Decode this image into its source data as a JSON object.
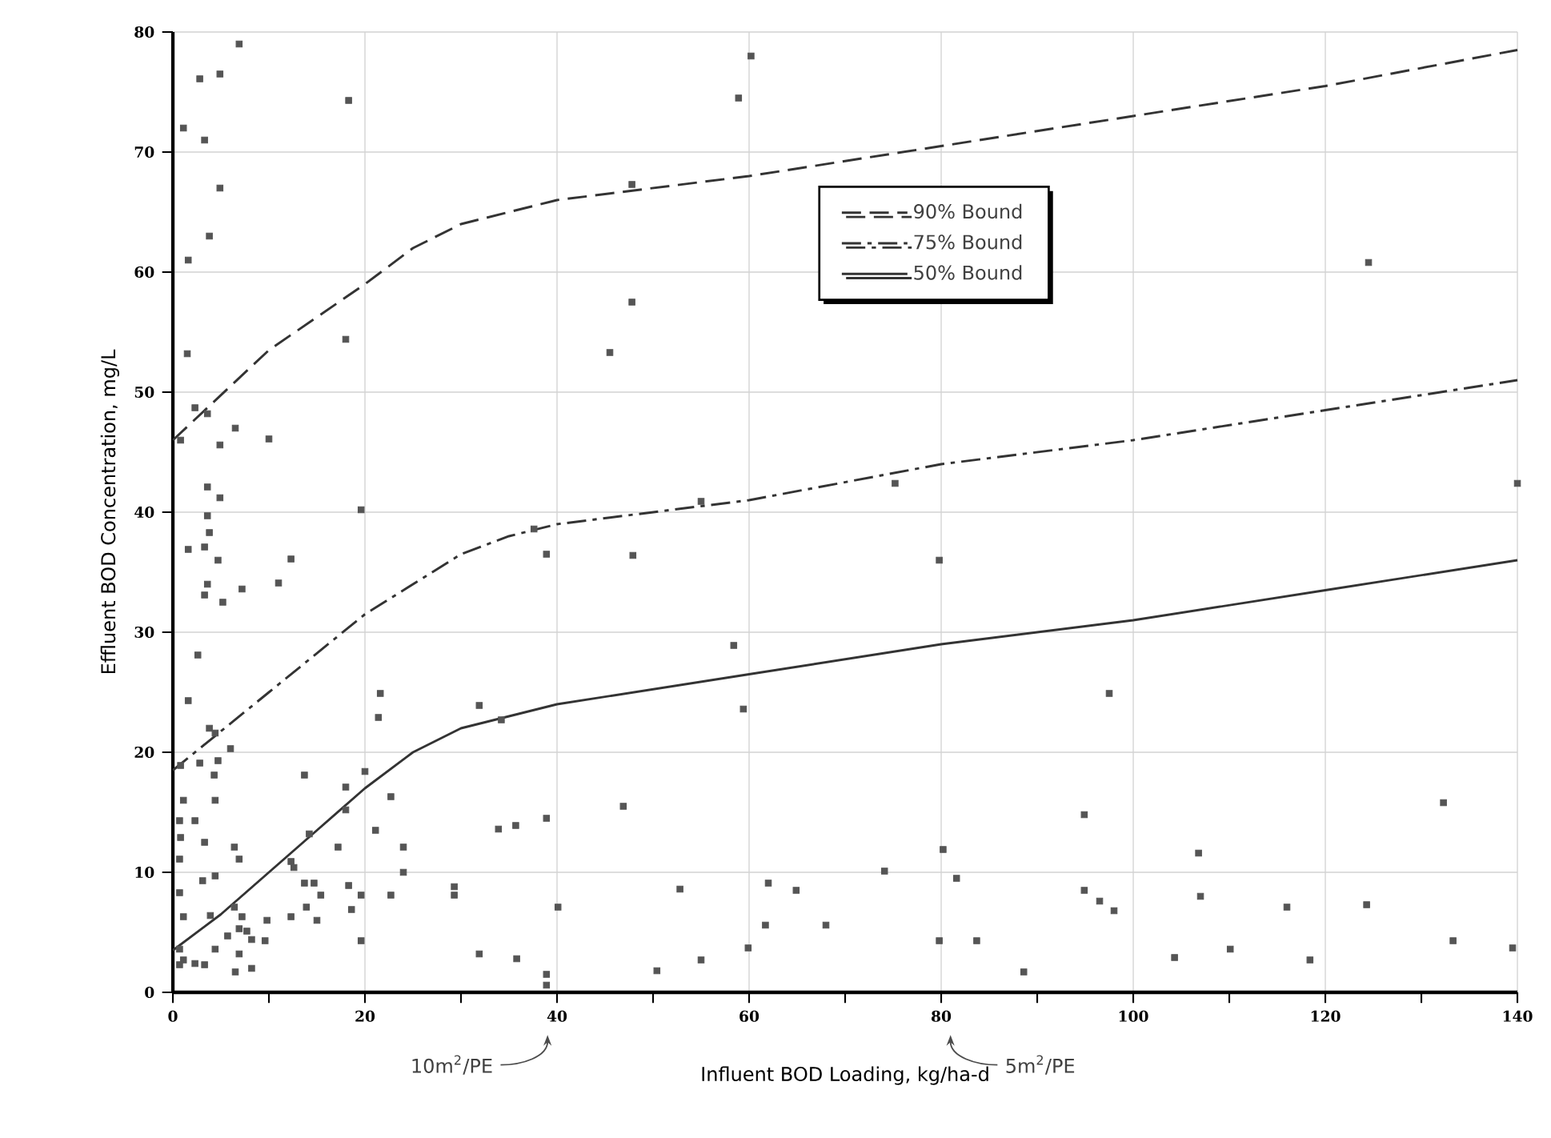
{
  "chart_data": {
    "type": "scatter",
    "xlabel": "Influent BOD Loading, kg/ha-d",
    "ylabel": "Effluent BOD Concentration, mg/L",
    "xlim": [
      0,
      140
    ],
    "ylim": [
      0,
      80
    ],
    "xticks": [
      0,
      20,
      40,
      60,
      80,
      100,
      120,
      140
    ],
    "yticks": [
      0,
      10,
      20,
      30,
      40,
      50,
      60,
      70,
      80
    ],
    "grid": true,
    "legend": "top right",
    "annotations": [
      "10m$^{2}$/PE",
      "5m$^{2}$/PE"
    ],
    "series": [
      {
        "color": "#555555",
        "marker": "square",
        "x": [
          6.9,
          2.8,
          4.9,
          18.3,
          1.1,
          3.3,
          4.9,
          3.8,
          1.6,
          1.5,
          18,
          2.3,
          3.6,
          0.8,
          6.5,
          10,
          4.9,
          3.6,
          4.9,
          3.6,
          19.6,
          3.8,
          1.6,
          3.3,
          4.7,
          12.3,
          3.6,
          3.3,
          5.2,
          7.2,
          11,
          2.6,
          1.6,
          3.8,
          4.4,
          6,
          0.8,
          2.8,
          4.7,
          4.3,
          13.7,
          21.6,
          21.4,
          20,
          1.1,
          4.4,
          22.7,
          18,
          18,
          0.7,
          2.3,
          14.2,
          21.1,
          0.8,
          3.3,
          6.4,
          17.2,
          24,
          0.7,
          6.9,
          12.3,
          12.6,
          4.4,
          3.1,
          24,
          13.7,
          14.7,
          18.3,
          0.7,
          15.4,
          19.6,
          22.7,
          29.3,
          29.3,
          6.4,
          13.9,
          18.6,
          1.1,
          3.9,
          7.2,
          9.8,
          12.3,
          15,
          6.9,
          7.7,
          5.7,
          8.2,
          9.6,
          19.6,
          4.4,
          6.9,
          1.1,
          2.3,
          3.3,
          0.7,
          8.2,
          6.5,
          0.7,
          60.2,
          58.9,
          47.8,
          47.8,
          45.5,
          124.5,
          75.2,
          37.6,
          38.9,
          47.9,
          55,
          79.8,
          58.4,
          59.4,
          31.9,
          34.2,
          97.5,
          46.9,
          33.9,
          35.7,
          38.9,
          94.9,
          132.3,
          80.2,
          106.8,
          74.1,
          81.6,
          52.8,
          62,
          64.9,
          94.9,
          96.5,
          98,
          107,
          116,
          124.3,
          40.1,
          61.7,
          68,
          31.9,
          35.8,
          38.9,
          38.9,
          50.4,
          55,
          59.9,
          79.8,
          83.7,
          88.6,
          104.3,
          110.1,
          118.4,
          133.3,
          139.5,
          140
        ],
        "values": [
          79,
          76.1,
          76.5,
          74.3,
          72,
          71,
          67,
          63,
          61,
          53.2,
          54.4,
          48.7,
          48.2,
          46,
          47,
          46.1,
          45.6,
          42.1,
          41.2,
          39.7,
          40.2,
          38.3,
          36.9,
          37.1,
          36,
          36.1,
          34,
          33.1,
          32.5,
          33.6,
          34.1,
          28.1,
          24.3,
          22,
          21.6,
          20.3,
          18.9,
          19.1,
          19.3,
          18.1,
          18.1,
          24.9,
          22.9,
          18.4,
          16,
          16,
          16.3,
          17.1,
          15.2,
          14.3,
          14.3,
          13.2,
          13.5,
          12.9,
          12.5,
          12.1,
          12.1,
          12.1,
          11.1,
          11.1,
          10.9,
          10.4,
          9.7,
          9.3,
          10,
          9.1,
          9.1,
          8.9,
          8.3,
          8.1,
          8.1,
          8.1,
          8.1,
          8.8,
          7.1,
          7.1,
          6.9,
          6.3,
          6.4,
          6.3,
          6,
          6.3,
          6,
          5.3,
          5.1,
          4.7,
          4.4,
          4.3,
          4.3,
          3.6,
          3.2,
          2.7,
          2.4,
          2.3,
          2.3,
          2,
          1.7,
          3.6,
          78,
          74.5,
          67.3,
          57.5,
          53.3,
          60.8,
          42.4,
          38.6,
          36.5,
          36.4,
          40.9,
          36,
          28.9,
          23.6,
          23.9,
          22.7,
          24.9,
          15.5,
          13.6,
          13.9,
          14.5,
          14.8,
          15.8,
          11.9,
          11.6,
          10.1,
          9.5,
          8.6,
          9.1,
          8.5,
          8.5,
          7.6,
          6.8,
          8,
          7.1,
          7.3,
          7.1,
          5.6,
          5.6,
          3.2,
          2.8,
          1.5,
          0.6,
          1.8,
          2.7,
          3.7,
          4.3,
          4.3,
          1.7,
          2.9,
          3.6,
          2.7,
          4.3,
          3.7,
          42.4
        ]
      },
      {
        "type": "line",
        "name": "90% Bound",
        "color": "#333333",
        "line_style": "dashed",
        "x": [
          0,
          10,
          20,
          25,
          30,
          35,
          40,
          60,
          80,
          100,
          120,
          140
        ],
        "values": [
          46,
          53.5,
          59,
          62,
          64,
          65,
          66,
          68,
          70.5,
          73,
          75.5,
          78.5
        ]
      },
      {
        "type": "line",
        "name": "75% Bound",
        "color": "#333333",
        "line_style": "dashdot",
        "x": [
          0,
          10,
          20,
          30,
          35,
          40,
          60,
          80,
          100,
          120,
          140
        ],
        "values": [
          18.5,
          25,
          31.5,
          36.5,
          38,
          39,
          41,
          44,
          46,
          48.5,
          51
        ]
      },
      {
        "type": "line",
        "name": "50% Bound",
        "color": "#333333",
        "line_style": "solid",
        "x": [
          0,
          5,
          10,
          15,
          20,
          25,
          30,
          35,
          40,
          60,
          80,
          100,
          120,
          140
        ],
        "values": [
          3.5,
          6.5,
          10,
          13.5,
          17,
          20,
          22,
          23,
          24,
          26.5,
          29,
          31,
          33.5,
          36
        ]
      }
    ]
  }
}
